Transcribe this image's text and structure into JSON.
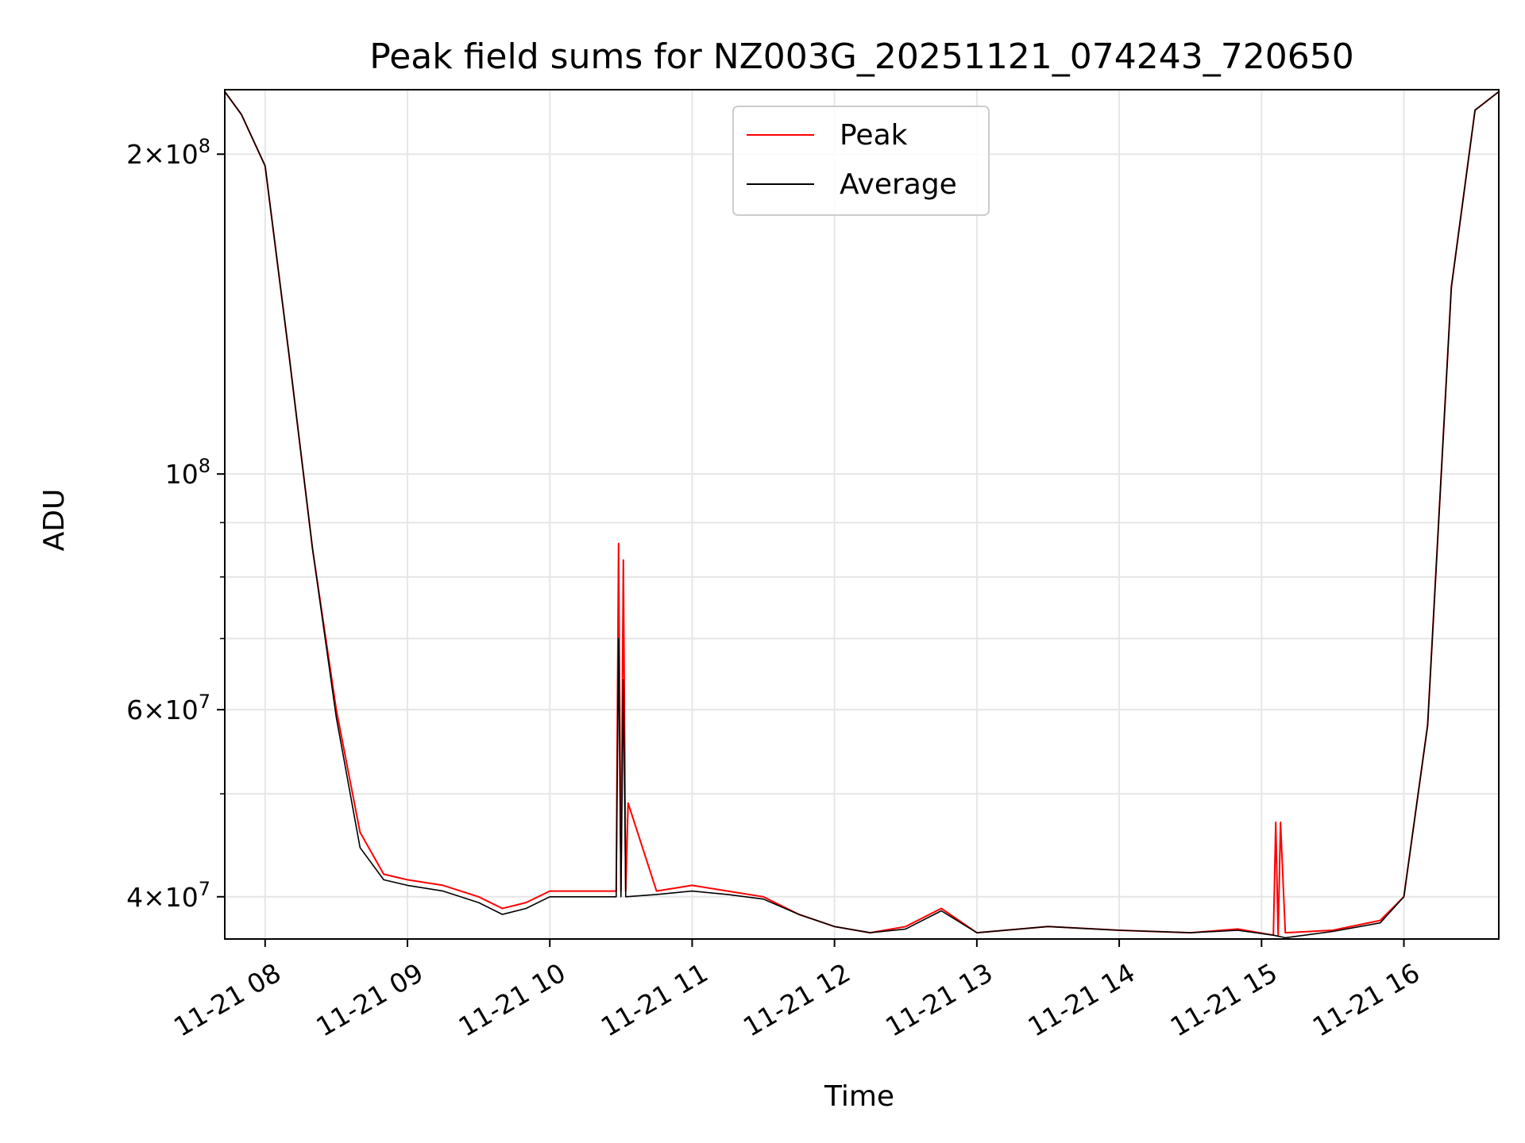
{
  "chart_data": {
    "type": "line",
    "title": "Peak field sums for NZ003G_20251121_074243_720650",
    "xlabel": "Time",
    "ylabel": "ADU",
    "xlim": [
      "2025-11-21 07:43",
      "2025-11-21 16:40"
    ],
    "ylim": [
      36500000,
      230000000
    ],
    "yscale": "log",
    "grid": true,
    "legend_position": "top-center",
    "x_ticks": [
      "11-21 08",
      "11-21 09",
      "11-21 10",
      "11-21 11",
      "11-21 12",
      "11-21 13",
      "11-21 14",
      "11-21 15",
      "11-21 16"
    ],
    "y_ticks": [
      {
        "value": 40000000,
        "mantissa": "4",
        "exp": "7"
      },
      {
        "value": 60000000,
        "mantissa": "6",
        "exp": "7"
      },
      {
        "value": 100000000,
        "mantissa": "",
        "exp": "8"
      },
      {
        "value": 200000000,
        "mantissa": "2",
        "exp": "8"
      }
    ],
    "series": [
      {
        "name": "Peak",
        "color": "#ff0000",
        "x": [
          "2025-11-21 07:43",
          "2025-11-21 07:50",
          "2025-11-21 08:00",
          "2025-11-21 08:10",
          "2025-11-21 08:20",
          "2025-11-21 08:30",
          "2025-11-21 08:40",
          "2025-11-21 08:50",
          "2025-11-21 09:00",
          "2025-11-21 09:15",
          "2025-11-21 09:30",
          "2025-11-21 09:40",
          "2025-11-21 09:50",
          "2025-11-21 10:00",
          "2025-11-21 10:15",
          "2025-11-21 10:28",
          "2025-11-21 10:29",
          "2025-11-21 10:30",
          "2025-11-21 10:31",
          "2025-11-21 10:32",
          "2025-11-21 10:33",
          "2025-11-21 10:45",
          "2025-11-21 11:00",
          "2025-11-21 11:15",
          "2025-11-21 11:30",
          "2025-11-21 11:45",
          "2025-11-21 12:00",
          "2025-11-21 12:15",
          "2025-11-21 12:30",
          "2025-11-21 12:45",
          "2025-11-21 13:00",
          "2025-11-21 13:30",
          "2025-11-21 14:00",
          "2025-11-21 14:30",
          "2025-11-21 14:50",
          "2025-11-21 15:05",
          "2025-11-21 15:06",
          "2025-11-21 15:07",
          "2025-11-21 15:08",
          "2025-11-21 15:10",
          "2025-11-21 15:30",
          "2025-11-21 15:50",
          "2025-11-21 16:00",
          "2025-11-21 16:10",
          "2025-11-21 16:20",
          "2025-11-21 16:30",
          "2025-11-21 16:40"
        ],
        "y": [
          229000000,
          218000000,
          195000000,
          130000000,
          85000000,
          60000000,
          46000000,
          42000000,
          41500000,
          41000000,
          40000000,
          39000000,
          39500000,
          40500000,
          40500000,
          40500000,
          86000000,
          40500000,
          83000000,
          40500000,
          49000000,
          40500000,
          41000000,
          40500000,
          40000000,
          38500000,
          37500000,
          37000000,
          37500000,
          39000000,
          37000000,
          37500000,
          37200000,
          37000000,
          37300000,
          36800000,
          47000000,
          36800000,
          47000000,
          37000000,
          37200000,
          38000000,
          40000000,
          58000000,
          150000000,
          220000000,
          229000000
        ]
      },
      {
        "name": "Average",
        "color": "#000000",
        "x": [
          "2025-11-21 07:43",
          "2025-11-21 07:50",
          "2025-11-21 08:00",
          "2025-11-21 08:10",
          "2025-11-21 08:20",
          "2025-11-21 08:30",
          "2025-11-21 08:40",
          "2025-11-21 08:50",
          "2025-11-21 09:00",
          "2025-11-21 09:15",
          "2025-11-21 09:30",
          "2025-11-21 09:40",
          "2025-11-21 09:50",
          "2025-11-21 10:00",
          "2025-11-21 10:15",
          "2025-11-21 10:28",
          "2025-11-21 10:29",
          "2025-11-21 10:30",
          "2025-11-21 10:31",
          "2025-11-21 10:32",
          "2025-11-21 10:45",
          "2025-11-21 11:00",
          "2025-11-21 11:15",
          "2025-11-21 11:30",
          "2025-11-21 11:45",
          "2025-11-21 12:00",
          "2025-11-21 12:15",
          "2025-11-21 12:30",
          "2025-11-21 12:45",
          "2025-11-21 13:00",
          "2025-11-21 13:30",
          "2025-11-21 14:00",
          "2025-11-21 14:30",
          "2025-11-21 14:50",
          "2025-11-21 15:05",
          "2025-11-21 15:10",
          "2025-11-21 15:30",
          "2025-11-21 15:50",
          "2025-11-21 16:00",
          "2025-11-21 16:10",
          "2025-11-21 16:20",
          "2025-11-21 16:30",
          "2025-11-21 16:40"
        ],
        "y": [
          229000000,
          218000000,
          195000000,
          130000000,
          85000000,
          59000000,
          44500000,
          41500000,
          41000000,
          40500000,
          39500000,
          38500000,
          39000000,
          40000000,
          40000000,
          40000000,
          70000000,
          40000000,
          64000000,
          40000000,
          40200000,
          40500000,
          40200000,
          39800000,
          38500000,
          37500000,
          37000000,
          37300000,
          38800000,
          37000000,
          37500000,
          37200000,
          37000000,
          37200000,
          36800000,
          36600000,
          37100000,
          37800000,
          40000000,
          58000000,
          150000000,
          220000000,
          229000000
        ]
      }
    ]
  }
}
